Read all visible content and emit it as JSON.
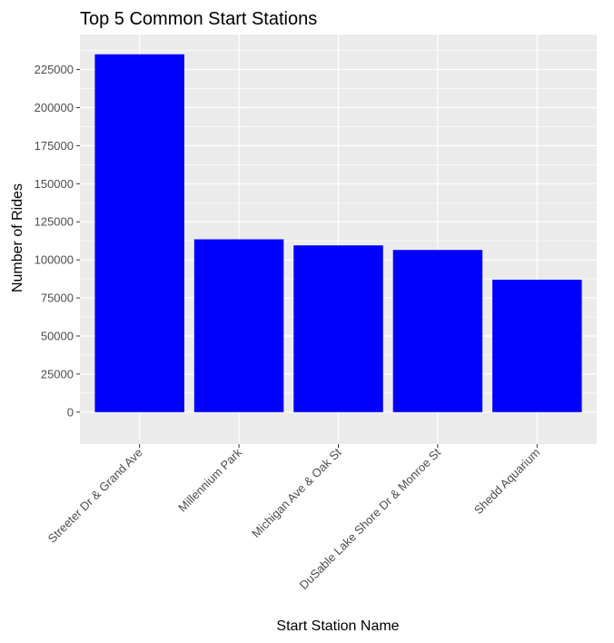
{
  "chart_data": {
    "type": "bar",
    "title": "Top 5 Common Start Stations",
    "xlabel": "Start Station Name",
    "ylabel": "Number of Rides",
    "categories": [
      "Streeter Dr & Grand Ave",
      "Millennium Park",
      "Michigan Ave & Oak St",
      "DuSable Lake Shore Dr & Monroe St",
      "Shedd Aquarium"
    ],
    "values": [
      235000,
      113500,
      109500,
      106500,
      87000
    ],
    "ylim": [
      -21000,
      248000
    ],
    "y_ticks": [
      0,
      25000,
      50000,
      75000,
      100000,
      125000,
      150000,
      175000,
      200000,
      225000
    ],
    "y_tick_labels": [
      "0",
      "25000",
      "50000",
      "75000",
      "100000",
      "125000",
      "150000",
      "175000",
      "200000",
      "225000"
    ],
    "bar_color": "#0000ff",
    "panel_background": "#ebebeb",
    "grid": true,
    "legend": "none"
  }
}
